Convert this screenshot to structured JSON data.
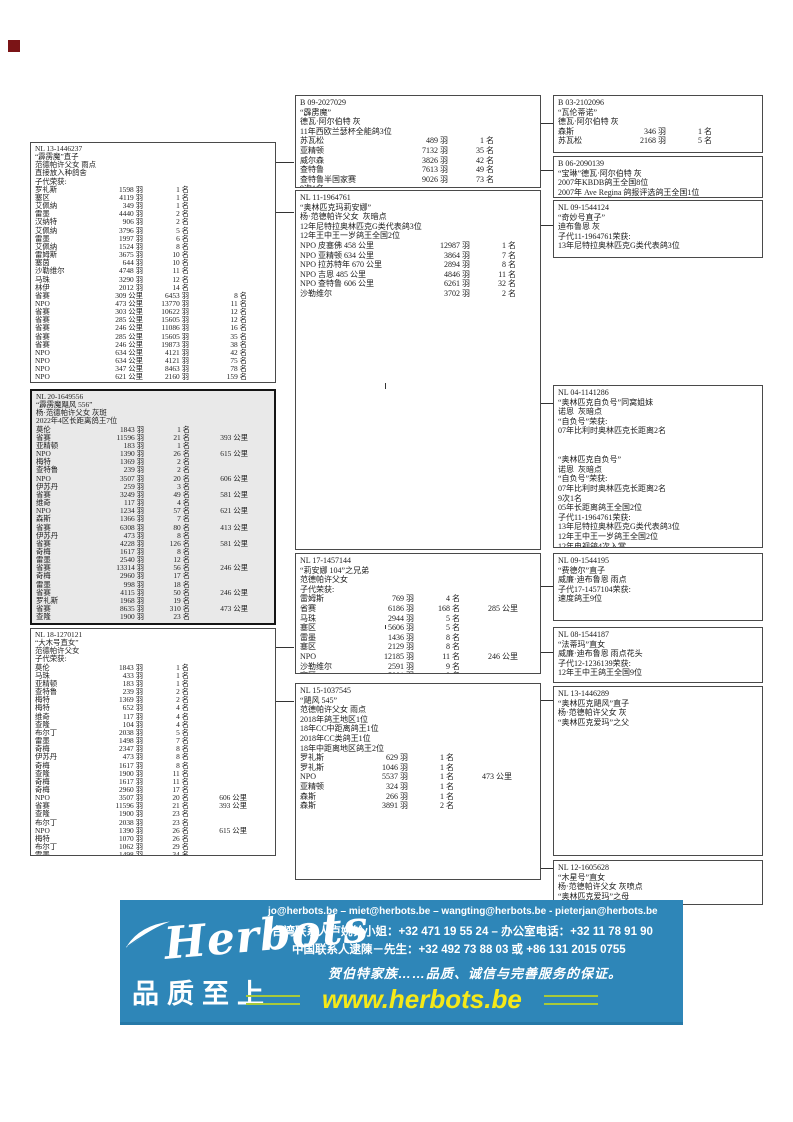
{
  "page": {
    "marker_color": "#7b1416"
  },
  "pedigree": {
    "boxes": [
      {
        "key": "L1",
        "ring": "NL 13-1446237",
        "rows": [
          "“霹雳魔”直子",
          "范德帕许父女 雨点",
          "直接放入种鸽舍",
          "子代荣获:",
          [
            "罗礼斯",
            "1598 羽",
            "1 名"
          ],
          [
            "塞区",
            "4119 羽",
            "1 名"
          ],
          [
            "艾佩纳",
            "349 羽",
            "1 名"
          ],
          [
            "雷墨",
            "4440 羽",
            "2 名"
          ],
          [
            "汉纳特",
            "906 羽",
            "2 名"
          ],
          [
            "艾佩纳",
            "3796 羽",
            "5 名"
          ],
          [
            "雷墨",
            "1997 羽",
            "6 名"
          ],
          [
            "艾佩纳",
            "1524 羽",
            "8 名"
          ],
          [
            "雷姆斯",
            "3675 羽",
            "10 名"
          ],
          [
            "塞茵",
            "644 羽",
            "10 名"
          ],
          [
            "沙勒维尔",
            "4748 羽",
            "11 名"
          ],
          [
            "马珠",
            "3290 羽",
            "12 名"
          ],
          [
            "林伊",
            "2012 羽",
            "14 名"
          ],
          [
            "省赛",
            "309 公里",
            "6453 羽",
            "8 名"
          ],
          [
            "NPO",
            "473 公里",
            "13770 羽",
            "11 名"
          ],
          [
            "省赛",
            "303 公里",
            "10622 羽",
            "12 名"
          ],
          [
            "省赛",
            "285 公里",
            "15605 羽",
            "12 名"
          ],
          [
            "省赛",
            "246 公里",
            "11086 羽",
            "16 名"
          ],
          [
            "省赛",
            "285 公里",
            "15605 羽",
            "35 名"
          ],
          [
            "省赛",
            "246 公里",
            "19873 羽",
            "38 名"
          ],
          [
            "NPO",
            "634 公里",
            "4121 羽",
            "42 名"
          ],
          [
            "NPO",
            "634 公里",
            "4121 羽",
            "75 名"
          ],
          [
            "NPO",
            "347 公里",
            "8463 羽",
            "78 名"
          ],
          [
            "NPO",
            "621 公里",
            "2160 羽",
            "159 名"
          ]
        ]
      },
      {
        "key": "L2",
        "ring": "NL 20-1649556",
        "rows": [
          "“霹雳魔飓风 556”",
          "杨·范德帕许父女 灰斑",
          "2022年4区长距离鸽王7位",
          [
            "莫伦",
            "1843 羽",
            "1 名"
          ],
          [
            "省赛",
            "11596 羽",
            "21 名",
            "393 公里"
          ],
          [
            "亚精顿",
            "183 羽",
            "1 名"
          ],
          [
            "NPO",
            "1390 羽",
            "26 名",
            "615 公里"
          ],
          [
            "梅特",
            "1369 羽",
            "2 名"
          ],
          [
            "查特鲁",
            "239 羽",
            "2 名"
          ],
          [
            "NPO",
            "3507 羽",
            "20 名",
            "606 公里"
          ],
          [
            "伊苏丹",
            "259 羽",
            "3 名"
          ],
          [
            "省赛",
            "3249 羽",
            "49 名",
            "581 公里"
          ],
          [
            "维奇",
            "117 羽",
            "4 名"
          ],
          [
            "NPO",
            "1234 羽",
            "57 名",
            "621 公里"
          ],
          [
            "森斯",
            "1366 羽",
            "7 名"
          ],
          [
            "省赛",
            "6308 羽",
            "80 名",
            "413 公里"
          ],
          [
            "伊苏丹",
            "473 羽",
            "8 名"
          ],
          [
            "省赛",
            "4228 羽",
            "126 名",
            "581 公里"
          ],
          [
            "奇梅",
            "1617 羽",
            "8 名"
          ],
          [
            "雷墨",
            "2540 羽",
            "12 名"
          ],
          [
            "省赛",
            "13314 羽",
            "56 名",
            "246 公里"
          ],
          [
            "奇梅",
            "2960 羽",
            "17 名"
          ],
          [
            "雷墨",
            "998 羽",
            "18 名"
          ],
          [
            "省赛",
            "4115 羽",
            "50 名",
            "246 公里"
          ],
          [
            "罗礼斯",
            "1968 羽",
            "19 名"
          ],
          [
            "省赛",
            "8635 羽",
            "310 名",
            "473 公里"
          ],
          [
            "查隆",
            "1900 羽",
            "23 名"
          ]
        ]
      },
      {
        "key": "L3",
        "ring": "NL 18-1270121",
        "rows": [
          "“大木号直女”",
          "范德帕许父女",
          "子代荣获:",
          [
            "莫伦",
            "1843 羽",
            "1 名"
          ],
          [
            "马珠",
            "433 羽",
            "1 名"
          ],
          [
            "亚精顿",
            "183 羽",
            "1 名"
          ],
          [
            "查特鲁",
            "239 羽",
            "2 名"
          ],
          [
            "梅特",
            "1369 羽",
            "2 名"
          ],
          [
            "梅特",
            "652 羽",
            "4 名"
          ],
          [
            "维奇",
            "117 羽",
            "4 名"
          ],
          [
            "查隆",
            "104 羽",
            "4 名"
          ],
          [
            "布尔丁",
            "2038 羽",
            "5 名"
          ],
          [
            "雷墨",
            "1498 羽",
            "7 名"
          ],
          [
            "奇梅",
            "2347 羽",
            "8 名"
          ],
          [
            "伊苏丹",
            "473 羽",
            "8 名"
          ],
          [
            "奇梅",
            "1617 羽",
            "8 名"
          ],
          [
            "查隆",
            "1900 羽",
            "11 名"
          ],
          [
            "奇梅",
            "1617 羽",
            "11 名"
          ],
          [
            "奇梅",
            "2960 羽",
            "17 名"
          ],
          [
            "NPO",
            "3507 羽",
            "20 名",
            "606 公里"
          ],
          [
            "省赛",
            "11596 羽",
            "21 名",
            "393 公里"
          ],
          [
            "查隆",
            "1900 羽",
            "23 名"
          ],
          [
            "布尔丁",
            "2038 羽",
            "23 名"
          ],
          [
            "NPO",
            "1390 羽",
            "26 名",
            "615 公里"
          ],
          [
            "梅特",
            "1070 羽",
            "26 名"
          ],
          [
            "布尔丁",
            "1062 羽",
            "29 名"
          ],
          [
            "雷墨",
            "1498 羽",
            "34 名"
          ]
        ]
      },
      {
        "key": "M1",
        "ring": "B 09-2027029",
        "rows": [
          "“霹雳魔”",
          "德瓦·阿尔伯特 灰",
          "11年西欧兰瑟杯全能鸽3位",
          [
            "苏瓦松",
            "489 羽",
            "1 名"
          ],
          [
            "亚精顿",
            "7132 羽",
            "35 名"
          ],
          [
            "威尔森",
            "3826 羽",
            "42 名"
          ],
          [
            "查特鲁",
            "7613 羽",
            "49 名"
          ],
          [
            "查特鲁半国家赛",
            "9026 羽",
            "73 名"
          ],
          "9次1名"
        ]
      },
      {
        "key": "M2",
        "ring": "NL 11-1964761",
        "rows": [
          "“奥林匹克玛莉安娜”",
          "杨·范德帕许父女  灰暗点",
          "12年尼特拉奥林匹克G类代表鸽3位",
          "12年王中王一岁鸽王全国2位",
          [
            "NPO 皮塞佛 458 公里",
            "12987 羽",
            "1 名"
          ],
          [
            "NPO 亚精顿 634 公里",
            "3864 羽",
            "7 名"
          ],
          [
            "NPO 拉苏特年 670 公里",
            "2894 羽",
            "8 名"
          ],
          [
            "NPO 吉恩 485 公里",
            "4846 羽",
            "11 名"
          ],
          [
            "NPO 查特鲁 606 公里",
            "6261 羽",
            "32 名"
          ],
          [
            "沙勒维尔",
            "3702 羽",
            "2 名"
          ]
        ]
      },
      {
        "key": "M3",
        "ring": "NL 17-1457144",
        "rows": [
          "“莉安娜 104”之兄弟",
          "范德帕许父女",
          "子代荣获:",
          [
            "雷姆斯",
            "769 羽",
            "4 名"
          ],
          [
            "省赛",
            "6186 羽",
            "168 名",
            "285 公里"
          ],
          [
            "马珠",
            "2944 羽",
            "5 名"
          ],
          [
            "塞区",
            "5606 羽",
            "5 名"
          ],
          [
            "雷墨",
            "1436 羽",
            "8 名"
          ],
          [
            "塞区",
            "2129 羽",
            "8 名"
          ],
          [
            "NPO",
            "12185 羽",
            "11 名",
            "246 公里"
          ],
          [
            "沙勒维尔",
            "2591 羽",
            "9 名"
          ],
          [
            "塞区",
            "5001 羽",
            "9 名"
          ]
        ]
      },
      {
        "key": "M4",
        "ring": "NL 15-1037545",
        "rows": [
          "“飓风 545”",
          "范德帕许父女 雨点",
          "2018年鸽王地区1位",
          "18年CC中距离鸽王1位",
          "2018年CC类鸽王1位",
          "18年中距离地区鸽王2位",
          [
            "罗礼斯",
            "629 羽",
            "1 名"
          ],
          [
            "罗礼斯",
            "1046 羽",
            "1 名"
          ],
          [
            "NPO",
            "5537 羽",
            "1 名",
            "473 公里"
          ],
          [
            "亚精顿",
            "324 羽",
            "1 名"
          ],
          [
            "森斯",
            "266 羽",
            "1 名"
          ],
          [
            "森斯",
            "3891 羽",
            "2 名"
          ]
        ]
      },
      {
        "key": "R1",
        "ring": "B 03-2102096",
        "rows": [
          "“瓦伦蒂诺”",
          "德瓦·阿尔伯特 灰",
          [
            "森斯",
            "346 羽",
            "1 名"
          ],
          [
            "苏瓦松",
            "2168 羽",
            "5 名"
          ]
        ]
      },
      {
        "key": "R2",
        "ring": "B 06-2090139",
        "rows": [
          "“宝琳”德瓦·阿尔伯特 灰",
          "2007年KBDB鸽王全国8位",
          "2007年 Ave Regina 鸽报评选鸽王全国1位"
        ]
      },
      {
        "key": "R3",
        "ring": "NL 09-1544124",
        "rows": [
          "“奇妙号直子”",
          "迪布鲁恩 灰",
          "子代11-1964761荣获:",
          "13年尼特拉奥林匹克G类代表鸽3位"
        ]
      },
      {
        "key": "R4",
        "ring": "NL 04-1141286",
        "rows": [
          "“奥林匹克自负号”同窝姐妹",
          "诺恩  灰暗点",
          "“自负号”荣获:",
          "07年比利时奥林匹克长距离2名",
          "",
          "",
          "“奥林匹克自负号”",
          "诺恩  灰暗点",
          "“自负号”荣获:",
          "07年比利时奥林匹克长距离2名",
          "9次1名",
          "05年长距离鸽王全国2位",
          "子代11-1964761荣获:",
          "13年尼特拉奥林匹克G类代表鸽3位",
          "12年王中王一岁鸽王全国2位",
          "12年电视鸽4次入赏"
        ]
      },
      {
        "key": "R5",
        "ring": "NL 09-1544195",
        "rows": [
          "“费德尔”直子",
          "威廉·迪布鲁恩 雨点",
          "子代17-1457104荣获:",
          "速度鸽王9位"
        ]
      },
      {
        "key": "R6",
        "ring": "NL 08-1544187",
        "rows": [
          "“法蒂玛”直女",
          "威廉·迪布鲁恩 雨点花头",
          "子代12-1236139荣获:",
          "12年王中王鸽王全国9位"
        ]
      },
      {
        "key": "R7",
        "ring": "NL 13-1446289",
        "rows": [
          "“奥林匹克飓风”直子",
          "杨·范德帕许父女 灰",
          "“奥林匹克爱玛”之父"
        ]
      },
      {
        "key": "R8",
        "ring": "NL 12-1605628",
        "rows": [
          "“木星号”直女",
          "杨·范德帕许父女 灰喷点",
          "“奥林匹克爱玛”之母"
        ]
      }
    ]
  },
  "banner": {
    "logo_text": "Herbots",
    "logo_subtext": "品质至上",
    "emails": "jo@herbots.be – miet@herbots.be – wangting@herbots.be - pieterjan@herbots.be",
    "contact_taiwan": "台湾联系人卢婉铃小姐：+32 471 19 55 24 – 办公室电话：+32 11 78 91 90",
    "contact_china": "中国联系人逮陳－先生：+32 492 73 88 03 或 +86 131 2015 0755",
    "slogan": "贺伯特家族……品质、诚信与完善服务的保证。",
    "website": "www.herbots.be",
    "colors": {
      "background": "#2e86b8",
      "website_text": "#f5e818",
      "accent_lines": "#a8c93a"
    }
  }
}
